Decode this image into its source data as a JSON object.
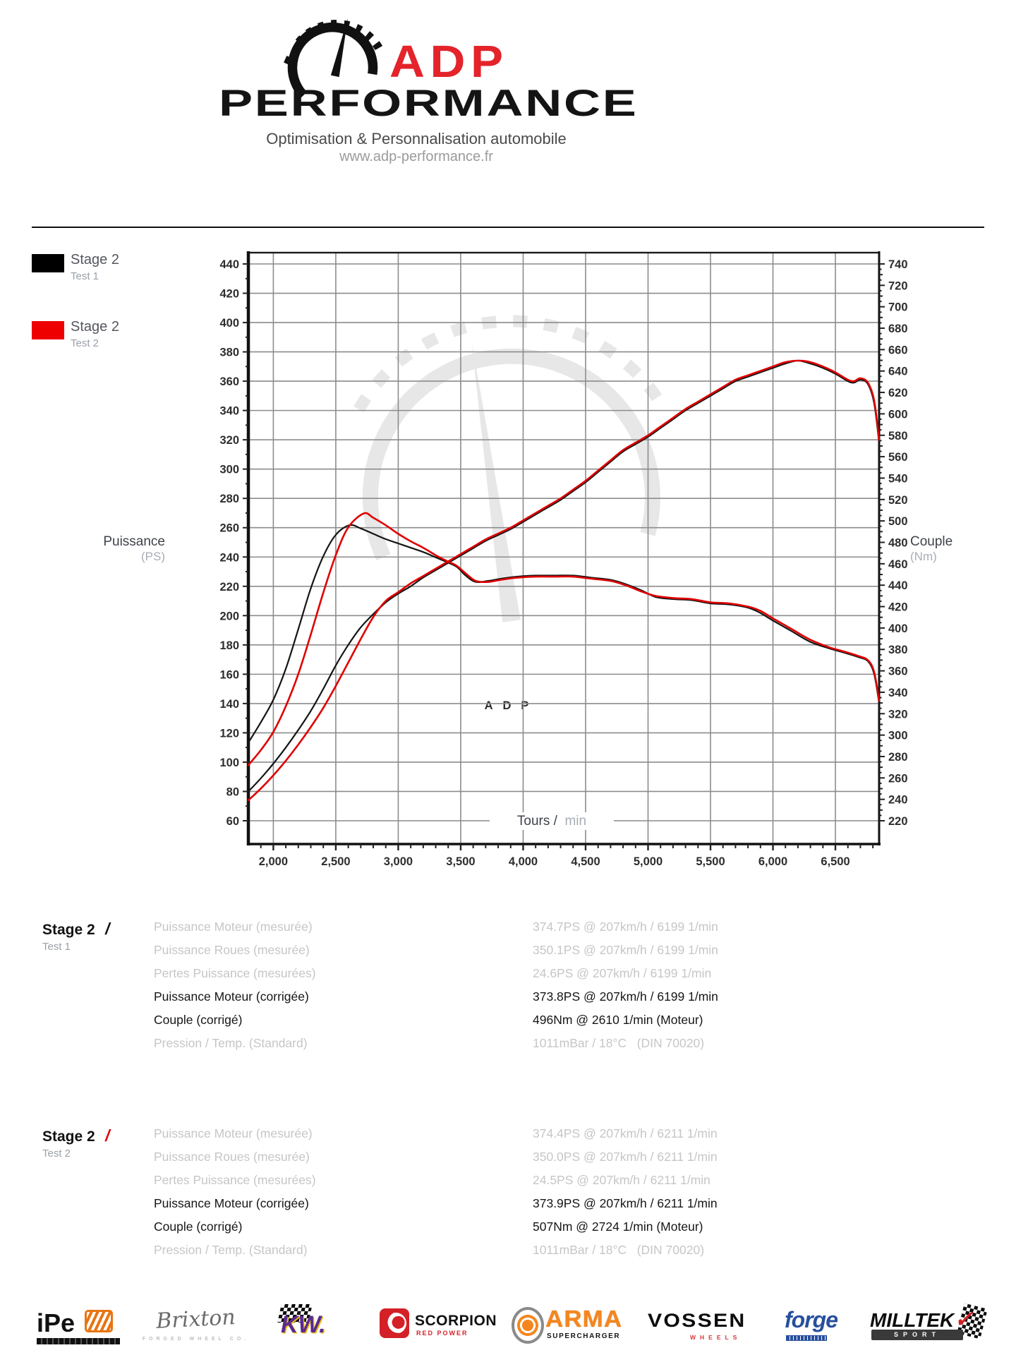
{
  "header": {
    "brand_red": "ADP",
    "brand_black": "PERFORMANCE",
    "tagline": "Optimisation & Personnalisation automobile",
    "website": "www.adp-performance.fr"
  },
  "legend": [
    {
      "label": "Stage 2",
      "sub": "Test 1",
      "color": "#000000"
    },
    {
      "label": "Stage 2",
      "sub": "Test 2",
      "color": "#ee0000"
    }
  ],
  "axes": {
    "left_title": "Puissance",
    "left_unit": "(PS)",
    "right_title": "Couple",
    "right_unit": "(Nm)",
    "x_title": "Tours /",
    "x_unit": "min"
  },
  "colors": {
    "accent_red": "#e4232b",
    "curve_red": "#e00000",
    "curve_black": "#141414",
    "grid": "#8c8c8c",
    "muted_text": "#c6c6c6"
  },
  "chart_data": {
    "type": "line",
    "watermark": "ADP",
    "x_axis": {
      "label": "Tours / min",
      "min": 1800,
      "max": 6850,
      "tick_values": [
        2000,
        2500,
        3000,
        3500,
        4000,
        4500,
        5000,
        5500,
        6000,
        6500
      ],
      "tick_labels": [
        "2,000",
        "2,500",
        "3,000",
        "3,500",
        "4,000",
        "4,500",
        "5,000",
        "5,500",
        "6,000",
        "6,500"
      ],
      "minor_step": 100
    },
    "left_axis": {
      "label": "Puissance (PS)",
      "min": 60,
      "max": 440,
      "step": 20
    },
    "right_axis": {
      "label": "Couple (Nm)",
      "min": 220,
      "max": 740,
      "step": 20
    },
    "grid": true,
    "legend_position": "outside-top-left",
    "series": [
      {
        "name": "Puissance Stage 2 Test 1",
        "unit": "PS",
        "axis": "left",
        "color": "#141414",
        "width": 2.2,
        "points": [
          [
            1800,
            80
          ],
          [
            1900,
            89
          ],
          [
            2000,
            99
          ],
          [
            2100,
            110
          ],
          [
            2200,
            122
          ],
          [
            2300,
            135
          ],
          [
            2400,
            150
          ],
          [
            2500,
            166
          ],
          [
            2600,
            180
          ],
          [
            2700,
            192
          ],
          [
            2800,
            201
          ],
          [
            2900,
            209
          ],
          [
            3000,
            215
          ],
          [
            3100,
            220
          ],
          [
            3200,
            226
          ],
          [
            3300,
            231
          ],
          [
            3400,
            236
          ],
          [
            3500,
            241
          ],
          [
            3600,
            246
          ],
          [
            3700,
            251
          ],
          [
            3800,
            255
          ],
          [
            3900,
            259
          ],
          [
            4000,
            264
          ],
          [
            4100,
            269
          ],
          [
            4200,
            274
          ],
          [
            4300,
            279
          ],
          [
            4400,
            285
          ],
          [
            4500,
            291
          ],
          [
            4600,
            298
          ],
          [
            4700,
            305
          ],
          [
            4800,
            312
          ],
          [
            4900,
            317
          ],
          [
            5000,
            322
          ],
          [
            5100,
            328
          ],
          [
            5200,
            334
          ],
          [
            5300,
            340
          ],
          [
            5400,
            345
          ],
          [
            5500,
            350
          ],
          [
            5600,
            355
          ],
          [
            5700,
            360
          ],
          [
            5800,
            363
          ],
          [
            5900,
            366
          ],
          [
            6000,
            369
          ],
          [
            6100,
            372
          ],
          [
            6199,
            374
          ],
          [
            6300,
            372
          ],
          [
            6400,
            369
          ],
          [
            6500,
            365
          ],
          [
            6600,
            360
          ],
          [
            6650,
            359
          ],
          [
            6700,
            361
          ],
          [
            6760,
            358
          ],
          [
            6810,
            345
          ],
          [
            6850,
            318
          ]
        ]
      },
      {
        "name": "Couple Stage 2 Test 1",
        "unit": "Nm",
        "axis": "right",
        "color": "#141414",
        "width": 2.2,
        "points": [
          [
            1800,
            293
          ],
          [
            1900,
            312
          ],
          [
            2000,
            333
          ],
          [
            2100,
            362
          ],
          [
            2200,
            399
          ],
          [
            2300,
            437
          ],
          [
            2400,
            467
          ],
          [
            2500,
            487
          ],
          [
            2610,
            496
          ],
          [
            2700,
            493
          ],
          [
            2800,
            488
          ],
          [
            2900,
            483
          ],
          [
            3000,
            479
          ],
          [
            3100,
            475
          ],
          [
            3200,
            471
          ],
          [
            3300,
            466
          ],
          [
            3400,
            461
          ],
          [
            3470,
            457
          ],
          [
            3540,
            449
          ],
          [
            3620,
            443
          ],
          [
            3720,
            444
          ],
          [
            3820,
            446
          ],
          [
            3950,
            448
          ],
          [
            4100,
            449
          ],
          [
            4250,
            449
          ],
          [
            4400,
            449
          ],
          [
            4550,
            447
          ],
          [
            4700,
            445
          ],
          [
            4820,
            441
          ],
          [
            4950,
            435
          ],
          [
            5060,
            429
          ],
          [
            5200,
            427
          ],
          [
            5350,
            426
          ],
          [
            5500,
            423
          ],
          [
            5650,
            422
          ],
          [
            5800,
            419
          ],
          [
            5900,
            414
          ],
          [
            6000,
            407
          ],
          [
            6150,
            397
          ],
          [
            6300,
            387
          ],
          [
            6450,
            381
          ],
          [
            6570,
            377
          ],
          [
            6680,
            373
          ],
          [
            6760,
            369
          ],
          [
            6810,
            357
          ],
          [
            6850,
            330
          ]
        ]
      },
      {
        "name": "Puissance Stage 2 Test 2",
        "unit": "PS",
        "axis": "left",
        "color": "#e00000",
        "width": 2.6,
        "points": [
          [
            1800,
            74
          ],
          [
            1900,
            82
          ],
          [
            2000,
            91
          ],
          [
            2100,
            101
          ],
          [
            2200,
            112
          ],
          [
            2300,
            124
          ],
          [
            2400,
            137
          ],
          [
            2500,
            152
          ],
          [
            2600,
            168
          ],
          [
            2700,
            184
          ],
          [
            2800,
            199
          ],
          [
            2900,
            210
          ],
          [
            3000,
            216
          ],
          [
            3100,
            222
          ],
          [
            3200,
            227
          ],
          [
            3300,
            232
          ],
          [
            3400,
            237
          ],
          [
            3500,
            242
          ],
          [
            3600,
            247
          ],
          [
            3700,
            252
          ],
          [
            3800,
            256
          ],
          [
            3900,
            260
          ],
          [
            4000,
            265
          ],
          [
            4100,
            270
          ],
          [
            4200,
            275
          ],
          [
            4300,
            280
          ],
          [
            4400,
            286
          ],
          [
            4500,
            292
          ],
          [
            4600,
            299
          ],
          [
            4700,
            306
          ],
          [
            4800,
            313
          ],
          [
            4900,
            318
          ],
          [
            5000,
            323
          ],
          [
            5100,
            329
          ],
          [
            5200,
            335
          ],
          [
            5300,
            341
          ],
          [
            5400,
            346
          ],
          [
            5500,
            351
          ],
          [
            5600,
            356
          ],
          [
            5700,
            361
          ],
          [
            5800,
            364
          ],
          [
            5900,
            367
          ],
          [
            6000,
            370
          ],
          [
            6100,
            373
          ],
          [
            6211,
            374
          ],
          [
            6300,
            373
          ],
          [
            6400,
            370
          ],
          [
            6500,
            366
          ],
          [
            6600,
            361
          ],
          [
            6650,
            360
          ],
          [
            6700,
            362
          ],
          [
            6760,
            359
          ],
          [
            6810,
            347
          ],
          [
            6850,
            320
          ]
        ]
      },
      {
        "name": "Couple Stage 2 Test 2",
        "unit": "Nm",
        "axis": "right",
        "color": "#e00000",
        "width": 2.6,
        "points": [
          [
            1800,
            272
          ],
          [
            1900,
            286
          ],
          [
            2000,
            303
          ],
          [
            2100,
            327
          ],
          [
            2200,
            357
          ],
          [
            2300,
            394
          ],
          [
            2400,
            433
          ],
          [
            2500,
            468
          ],
          [
            2600,
            494
          ],
          [
            2724,
            507
          ],
          [
            2800,
            503
          ],
          [
            2900,
            496
          ],
          [
            3000,
            488
          ],
          [
            3100,
            481
          ],
          [
            3200,
            475
          ],
          [
            3300,
            468
          ],
          [
            3400,
            462
          ],
          [
            3470,
            458
          ],
          [
            3540,
            451
          ],
          [
            3620,
            444
          ],
          [
            3720,
            443
          ],
          [
            3820,
            445
          ],
          [
            3950,
            447
          ],
          [
            4100,
            448
          ],
          [
            4250,
            448
          ],
          [
            4400,
            448
          ],
          [
            4550,
            446
          ],
          [
            4700,
            444
          ],
          [
            4820,
            440
          ],
          [
            4950,
            434
          ],
          [
            5060,
            430
          ],
          [
            5200,
            428
          ],
          [
            5350,
            427
          ],
          [
            5500,
            424
          ],
          [
            5650,
            423
          ],
          [
            5800,
            420
          ],
          [
            5900,
            416
          ],
          [
            6000,
            409
          ],
          [
            6150,
            399
          ],
          [
            6300,
            389
          ],
          [
            6450,
            382
          ],
          [
            6570,
            378
          ],
          [
            6680,
            374
          ],
          [
            6760,
            370
          ],
          [
            6810,
            359
          ],
          [
            6850,
            332
          ]
        ]
      }
    ]
  },
  "stats": {
    "blocks": [
      {
        "title": "Stage 2",
        "slash": "/",
        "slash_color": "#141414",
        "subtitle": "Test 1",
        "rows": [
          {
            "label": "Puissance Moteur (mesurée)",
            "value": "374.7PS @ 207km/h / 6199 1/min"
          },
          {
            "label": "Puissance Roues (mesurée)",
            "value": "350.1PS @ 207km/h / 6199 1/min"
          },
          {
            "label": "Pertes Puissance (mesurées)",
            "value": "24.6PS @ 207km/h / 6199 1/min"
          },
          {
            "label": "Puissance Moteur (corrigée)",
            "value": "373.8PS @ 207km/h / 6199 1/min"
          },
          {
            "label": "Couple (corrigé)",
            "value": "496Nm @ 2610 1/min (Moteur)"
          },
          {
            "label": "Pression / Temp. (Standard)",
            "value": "1011mBar / 18°C   (DIN 70020)"
          }
        ]
      },
      {
        "title": "Stage 2",
        "slash": "/",
        "slash_color": "#e00000",
        "subtitle": "Test 2",
        "rows": [
          {
            "label": "Puissance Moteur (mesurée)",
            "value": "374.4PS @ 207km/h / 6211 1/min"
          },
          {
            "label": "Puissance Roues (mesurée)",
            "value": "350.0PS @ 207km/h / 6211 1/min"
          },
          {
            "label": "Pertes Puissance (mesurées)",
            "value": "24.5PS @ 207km/h / 6211 1/min"
          },
          {
            "label": "Puissance Moteur (corrigée)",
            "value": "373.9PS @ 207km/h / 6211 1/min"
          },
          {
            "label": "Couple (corrigé)",
            "value": "507Nm @ 2724 1/min (Moteur)"
          },
          {
            "label": "Pression / Temp. (Standard)",
            "value": "1011mBar / 18°C   (DIN 70020)"
          }
        ]
      }
    ]
  },
  "footer": {
    "logos": [
      {
        "name": "iPe",
        "caption": ""
      },
      {
        "name": "Brixton",
        "caption": "FORGED WHEEL CO."
      },
      {
        "name": "KW.",
        "caption": ""
      },
      {
        "name": "SCORPION",
        "caption": "RED POWER"
      },
      {
        "name": "ARMA",
        "caption": "SUPERCHARGER"
      },
      {
        "name": "VOSSEN",
        "caption": "WHEELS"
      },
      {
        "name": "forge",
        "caption": ""
      },
      {
        "name": "MILLTEK",
        "caption": "SPORT"
      }
    ]
  }
}
